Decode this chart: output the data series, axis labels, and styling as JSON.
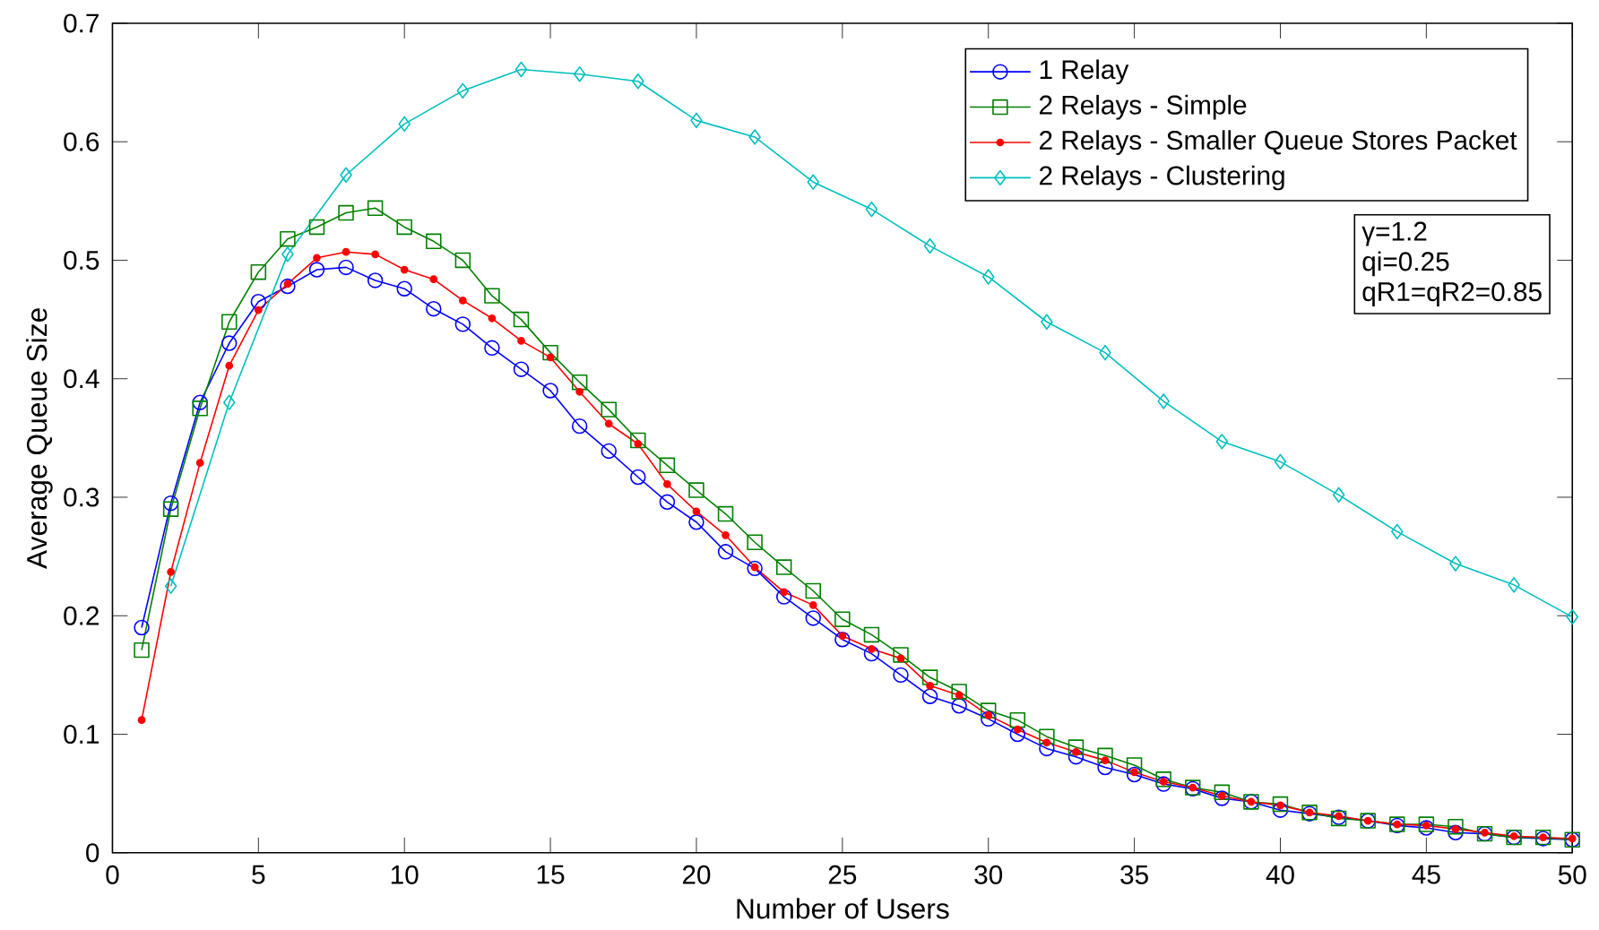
{
  "chart_data": {
    "type": "line",
    "xlabel": "Number of Users",
    "ylabel": "Average Queue Size",
    "xlim": [
      0,
      50
    ],
    "ylim": [
      0,
      0.7
    ],
    "xticks": [
      0,
      5,
      10,
      15,
      20,
      25,
      30,
      35,
      40,
      45,
      50
    ],
    "yticks": [
      0,
      0.1,
      0.2,
      0.3,
      0.4,
      0.5,
      0.6,
      0.7
    ],
    "grid": false,
    "legend": "top right",
    "line_style": "solid",
    "annotations": [
      "γ=1.2",
      "qi=0.25",
      "qR1=qR2=0.85"
    ],
    "series": [
      {
        "name": "1 Relay",
        "color": "#0000ff",
        "marker": "circle",
        "x": [
          1,
          2,
          3,
          4,
          5,
          6,
          7,
          8,
          9,
          10,
          11,
          12,
          13,
          14,
          15,
          16,
          17,
          18,
          19,
          20,
          21,
          22,
          23,
          24,
          25,
          26,
          27,
          28,
          29,
          30,
          31,
          32,
          33,
          34,
          35,
          36,
          37,
          38,
          39,
          40,
          41,
          42,
          43,
          44,
          45,
          46,
          47,
          48,
          49,
          50
        ],
        "values": [
          0.19,
          0.295,
          0.38,
          0.43,
          0.465,
          0.478,
          0.492,
          0.494,
          0.483,
          0.476,
          0.459,
          0.446,
          0.426,
          0.408,
          0.39,
          0.36,
          0.339,
          0.317,
          0.296,
          0.279,
          0.254,
          0.24,
          0.216,
          0.198,
          0.18,
          0.168,
          0.15,
          0.132,
          0.124,
          0.113,
          0.1,
          0.088,
          0.081,
          0.072,
          0.066,
          0.058,
          0.054,
          0.046,
          0.043,
          0.036,
          0.033,
          0.03,
          0.027,
          0.023,
          0.021,
          0.017,
          0.016,
          0.013,
          0.012,
          0.011
        ]
      },
      {
        "name": "2 Relays - Simple",
        "color": "#008000",
        "marker": "square",
        "x": [
          1,
          2,
          3,
          4,
          5,
          6,
          7,
          8,
          9,
          10,
          11,
          12,
          13,
          14,
          15,
          16,
          17,
          18,
          19,
          20,
          21,
          22,
          23,
          24,
          25,
          26,
          27,
          28,
          29,
          30,
          31,
          32,
          33,
          34,
          35,
          36,
          37,
          38,
          39,
          40,
          41,
          42,
          43,
          44,
          45,
          46,
          47,
          48,
          49,
          50
        ],
        "values": [
          0.171,
          0.29,
          0.375,
          0.448,
          0.49,
          0.518,
          0.528,
          0.54,
          0.544,
          0.528,
          0.516,
          0.5,
          0.47,
          0.45,
          0.422,
          0.397,
          0.374,
          0.348,
          0.327,
          0.306,
          0.286,
          0.262,
          0.241,
          0.221,
          0.197,
          0.184,
          0.167,
          0.148,
          0.136,
          0.12,
          0.112,
          0.098,
          0.089,
          0.082,
          0.074,
          0.062,
          0.055,
          0.051,
          0.043,
          0.041,
          0.034,
          0.029,
          0.027,
          0.024,
          0.024,
          0.022,
          0.016,
          0.013,
          0.013,
          0.011
        ]
      },
      {
        "name": "2 Relays - Smaller Queue Stores Packet",
        "color": "#ff0000",
        "marker": "star",
        "x": [
          1,
          2,
          3,
          4,
          5,
          6,
          7,
          8,
          9,
          10,
          11,
          12,
          13,
          14,
          15,
          16,
          17,
          18,
          19,
          20,
          21,
          22,
          23,
          24,
          25,
          26,
          27,
          28,
          29,
          30,
          31,
          32,
          33,
          34,
          35,
          36,
          37,
          38,
          39,
          40,
          41,
          42,
          43,
          44,
          45,
          46,
          47,
          48,
          49,
          50
        ],
        "values": [
          0.112,
          0.237,
          0.329,
          0.411,
          0.458,
          0.48,
          0.502,
          0.507,
          0.505,
          0.492,
          0.484,
          0.466,
          0.451,
          0.432,
          0.418,
          0.389,
          0.362,
          0.345,
          0.311,
          0.288,
          0.268,
          0.241,
          0.22,
          0.209,
          0.183,
          0.172,
          0.164,
          0.141,
          0.133,
          0.116,
          0.104,
          0.093,
          0.085,
          0.078,
          0.068,
          0.06,
          0.055,
          0.048,
          0.043,
          0.04,
          0.034,
          0.031,
          0.027,
          0.024,
          0.023,
          0.02,
          0.017,
          0.014,
          0.013,
          0.012
        ]
      },
      {
        "name": "2 Relays - Clustering",
        "color": "#00bfbf",
        "marker": "diamond",
        "x": [
          2,
          4,
          6,
          8,
          10,
          12,
          14,
          16,
          18,
          20,
          22,
          24,
          26,
          28,
          30,
          32,
          34,
          36,
          38,
          40,
          42,
          44,
          46,
          48,
          50
        ],
        "values": [
          0.225,
          0.38,
          0.505,
          0.572,
          0.615,
          0.643,
          0.661,
          0.657,
          0.651,
          0.618,
          0.604,
          0.566,
          0.543,
          0.512,
          0.486,
          0.448,
          0.422,
          0.381,
          0.347,
          0.33,
          0.302,
          0.271,
          0.244,
          0.226,
          0.199
        ]
      }
    ]
  }
}
